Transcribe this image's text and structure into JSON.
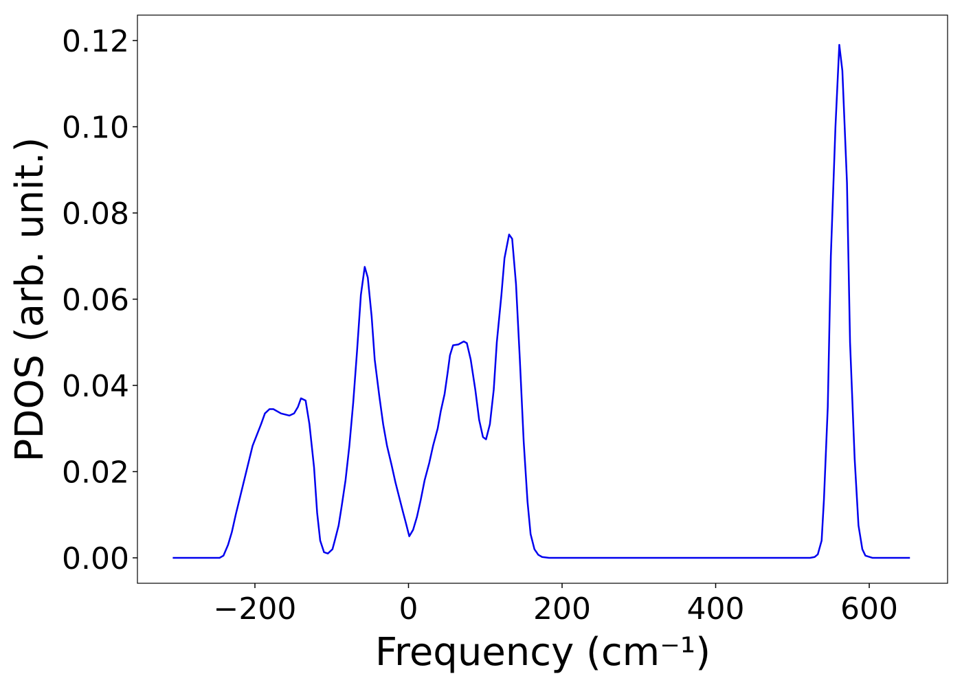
{
  "chart_data": {
    "type": "line",
    "xlabel": "Frequency (cm⁻¹)",
    "ylabel": "PDOS (arb. unit.)",
    "xlim": [
      -353,
      702
    ],
    "ylim": [
      -0.0059,
      0.1259
    ],
    "xticks": [
      {
        "value": -200,
        "label": "−200"
      },
      0,
      200,
      400,
      600
    ],
    "yticks": [
      {
        "value": 0,
        "label": "0.00"
      },
      {
        "value": 0.02,
        "label": "0.02"
      },
      {
        "value": 0.04,
        "label": "0.04"
      },
      {
        "value": 0.06,
        "label": "0.06"
      },
      {
        "value": 0.08,
        "label": "0.08"
      },
      {
        "value": 0.1,
        "label": "0.10"
      },
      {
        "value": 0.12,
        "label": "0.12"
      }
    ],
    "x": [
      -307,
      -246,
      -241,
      -235,
      -230,
      -225,
      -214,
      -203,
      -192,
      -187,
      -181,
      -176,
      -166,
      -155,
      -149,
      -144,
      -140,
      -134,
      -129,
      -123,
      -119,
      -115,
      -110,
      -105,
      -99,
      -96,
      -91,
      -87,
      -82,
      -77,
      -72,
      -67,
      -62,
      -57,
      -53,
      -48,
      -44,
      -38,
      -33,
      -28,
      -22,
      -17,
      -12,
      -7,
      -4,
      1,
      6,
      11,
      16,
      21,
      27,
      32,
      38,
      42,
      47,
      51,
      54,
      58,
      65,
      72,
      76,
      81,
      87,
      92,
      97,
      101,
      106,
      111,
      115,
      121,
      125,
      131,
      135,
      140,
      145,
      150,
      155,
      159,
      164,
      169,
      174,
      183,
      523,
      529,
      533,
      538,
      541,
      546,
      550,
      556,
      561,
      565,
      571,
      575,
      581,
      586,
      591,
      595,
      604,
      653
    ],
    "series": [
      {
        "color": "#0000ee",
        "values": [
          0,
          0,
          0.0005,
          0.003,
          0.006,
          0.01,
          0.018,
          0.026,
          0.031,
          0.0335,
          0.0345,
          0.0345,
          0.0335,
          0.033,
          0.0335,
          0.035,
          0.037,
          0.0365,
          0.031,
          0.021,
          0.0105,
          0.004,
          0.0013,
          0.001,
          0.002,
          0.004,
          0.0075,
          0.012,
          0.018,
          0.026,
          0.036,
          0.048,
          0.061,
          0.0675,
          0.065,
          0.056,
          0.046,
          0.0375,
          0.031,
          0.026,
          0.0215,
          0.0175,
          0.014,
          0.0105,
          0.0085,
          0.005,
          0.0065,
          0.0095,
          0.0135,
          0.018,
          0.022,
          0.026,
          0.03,
          0.034,
          0.038,
          0.043,
          0.047,
          0.0493,
          0.0495,
          0.0502,
          0.0498,
          0.046,
          0.039,
          0.032,
          0.028,
          0.0275,
          0.031,
          0.039,
          0.05,
          0.061,
          0.0695,
          0.075,
          0.074,
          0.0635,
          0.046,
          0.027,
          0.013,
          0.0055,
          0.002,
          0.0007,
          0.0002,
          0,
          0,
          0.0002,
          0.0008,
          0.004,
          0.0135,
          0.035,
          0.07,
          0.1,
          0.119,
          0.113,
          0.087,
          0.05,
          0.023,
          0.0075,
          0.002,
          0.0005,
          0,
          0
        ]
      }
    ]
  }
}
